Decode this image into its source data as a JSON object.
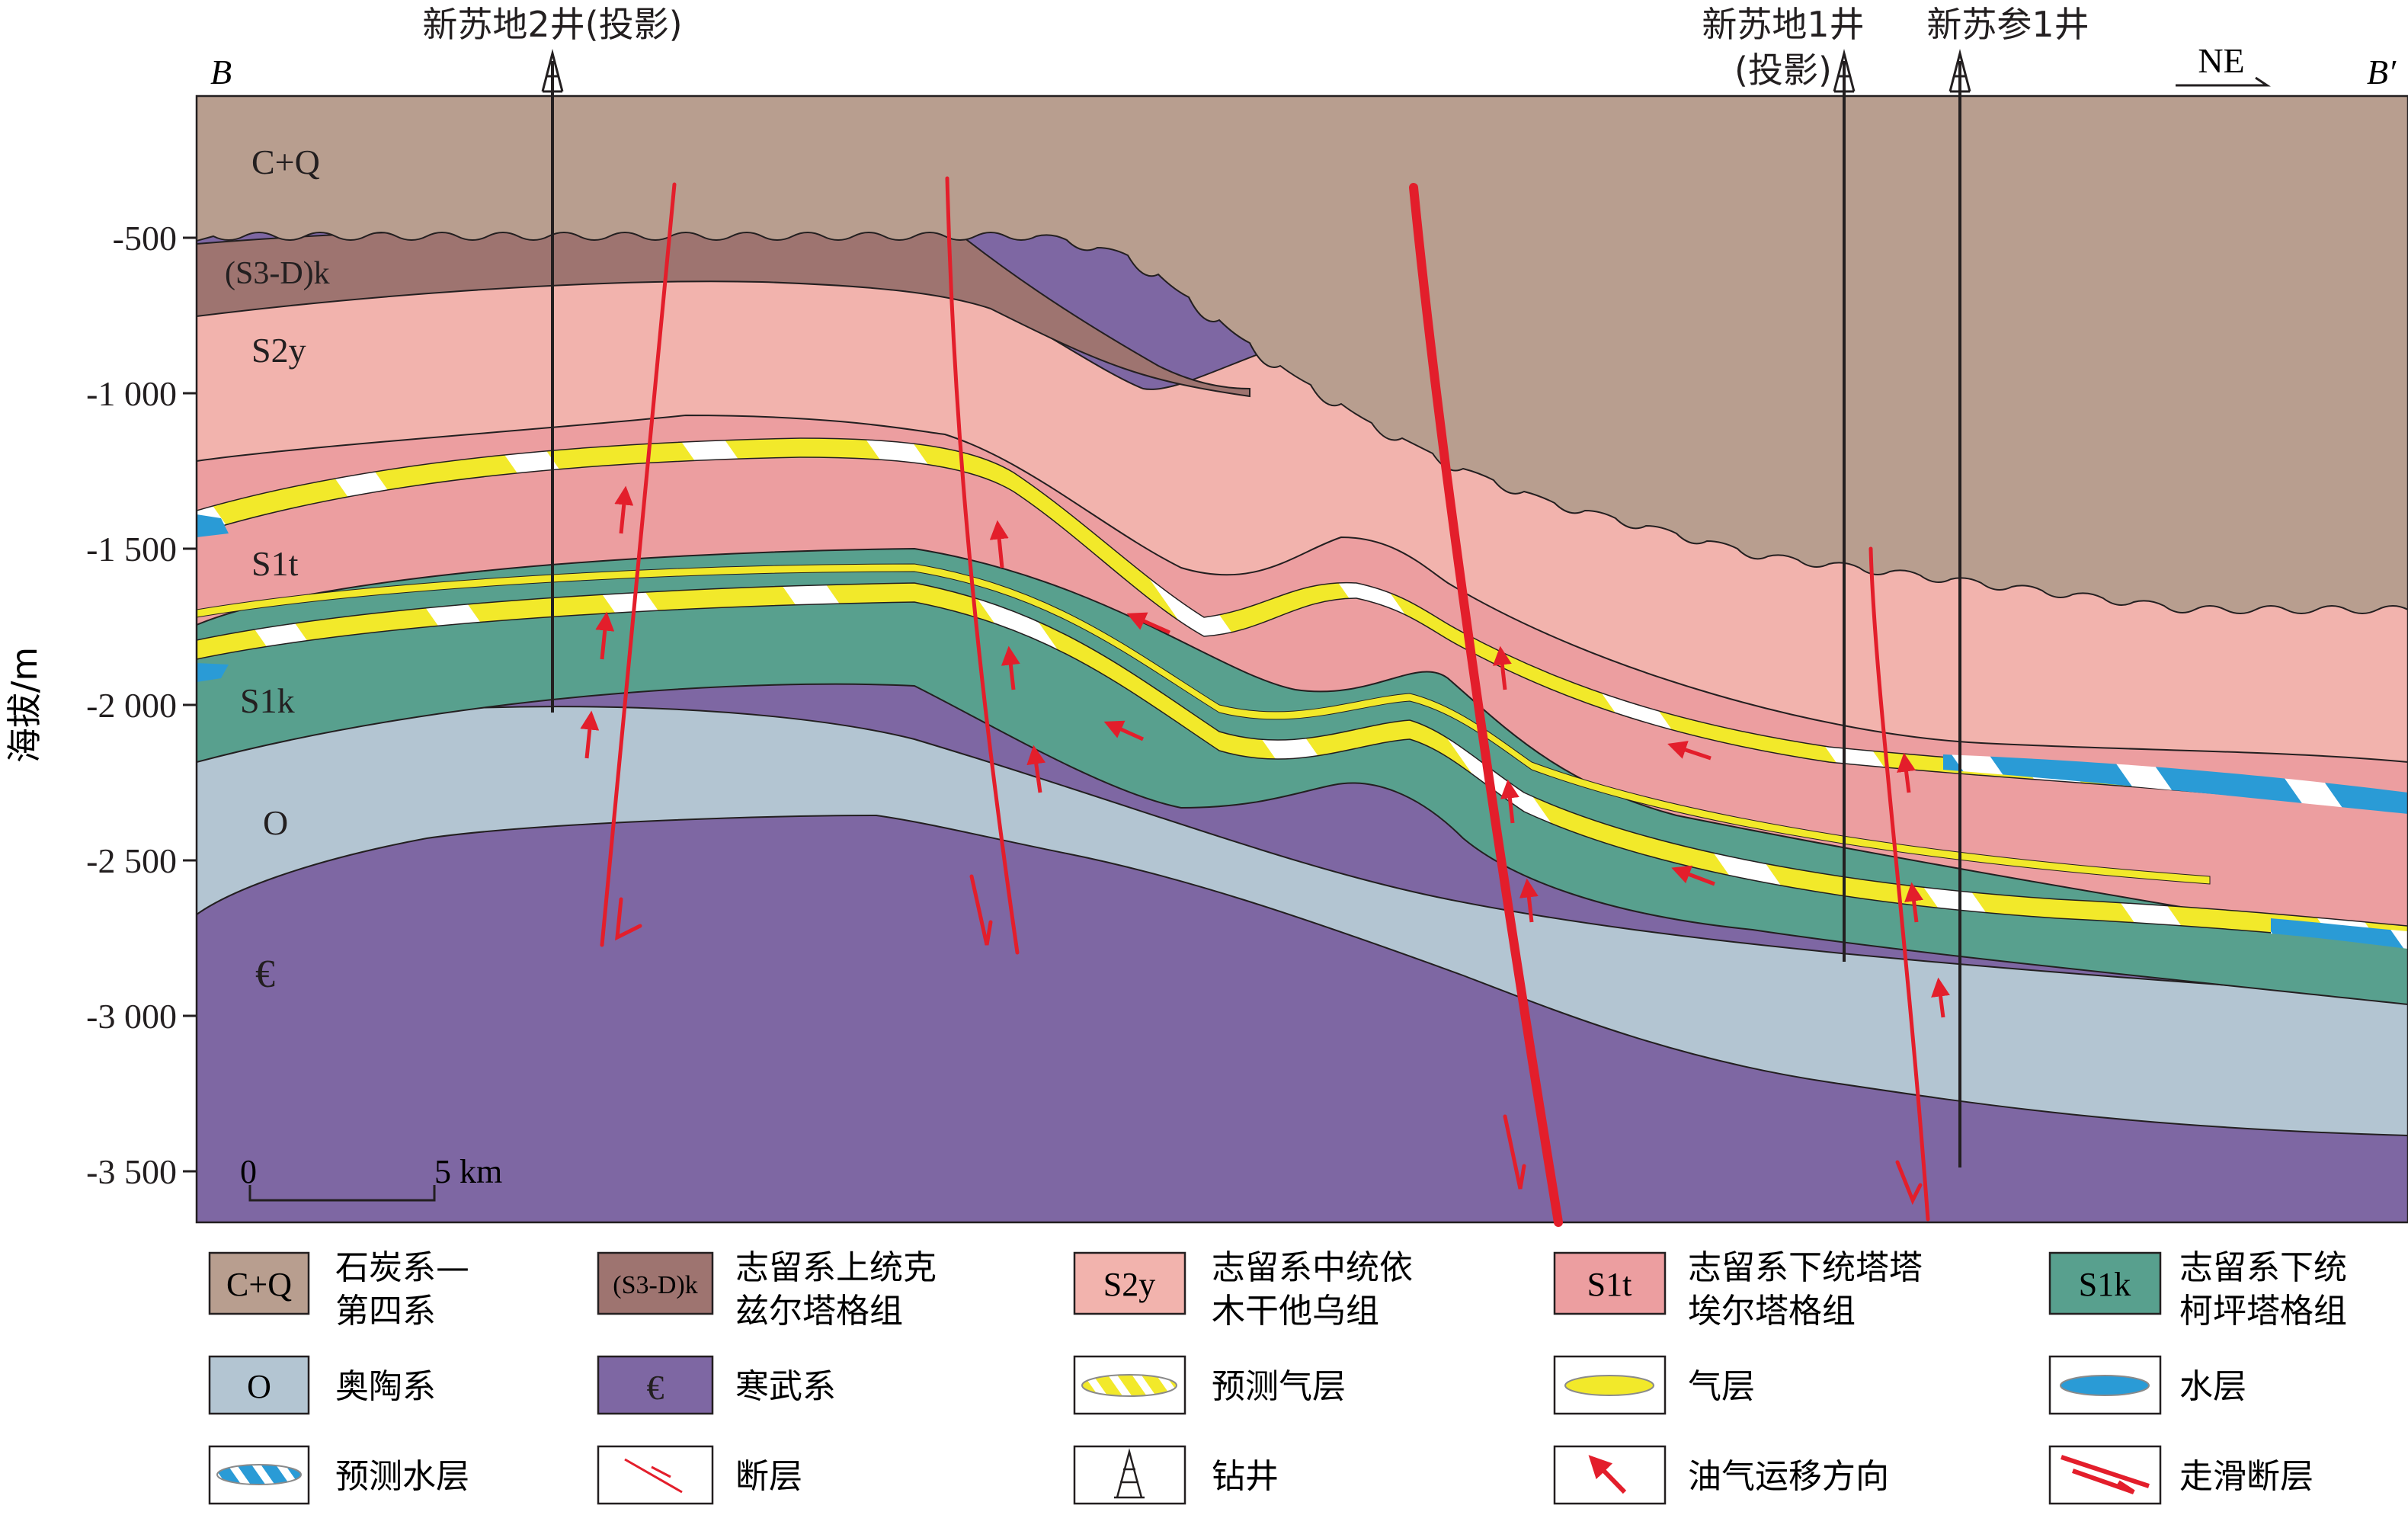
{
  "profile": {
    "start_label": "B",
    "end_label": "B′",
    "direction": "NE",
    "ylabel": "海拔/m",
    "yticks": [
      "-500",
      "-1 000",
      "-1 500",
      "-2 000",
      "-2 500",
      "-3 000",
      "-3 500"
    ],
    "scale": {
      "zero": "0",
      "end": "5 km"
    }
  },
  "wells": [
    {
      "name": "新苏地2井(投影)"
    },
    {
      "name_line1": "新苏地1井",
      "name_line2": "(投影)"
    },
    {
      "name": "新苏参1井"
    }
  ],
  "layers": {
    "cq": "C+Q",
    "s3dk": "(S3-D)k",
    "s2y": "S2y",
    "s1t": "S1t",
    "s1k": "S1k",
    "o": "O",
    "cambrian": "€"
  },
  "colors": {
    "cq": "#b89e8f",
    "s3dk": "#9e7470",
    "s2y": "#f2b3ad",
    "s1t": "#ec9ea0",
    "s1k": "#58a08e",
    "o": "#b3c5d2",
    "cambrian": "#7e67a3",
    "gas": "#f2e92a",
    "water": "#2a9bd6",
    "fault": "#e31e2b"
  },
  "legend": [
    {
      "symbol": "C+Q",
      "label1": "石炭系—",
      "label2": "第四系"
    },
    {
      "symbol": "(S3-D)k",
      "label1": "志留系上统克",
      "label2": "兹尔塔格组"
    },
    {
      "symbol": "S2y",
      "label1": "志留系中统依",
      "label2": "木干他乌组"
    },
    {
      "symbol": "S1t",
      "label1": "志留系下统塔塔",
      "label2": "埃尔塔格组"
    },
    {
      "symbol": "S1k",
      "label1": "志留系下统",
      "label2": "柯坪塔格组"
    },
    {
      "symbol": "O",
      "label1": "奥陶系"
    },
    {
      "symbol": "€",
      "label1": "寒武系"
    },
    {
      "label1": "预测气层"
    },
    {
      "label1": "气层"
    },
    {
      "label1": "水层"
    },
    {
      "label1": "预测水层"
    },
    {
      "label1": "断层"
    },
    {
      "label1": "钻井"
    },
    {
      "label1": "油气运移方向"
    },
    {
      "label1": "走滑断层"
    }
  ]
}
